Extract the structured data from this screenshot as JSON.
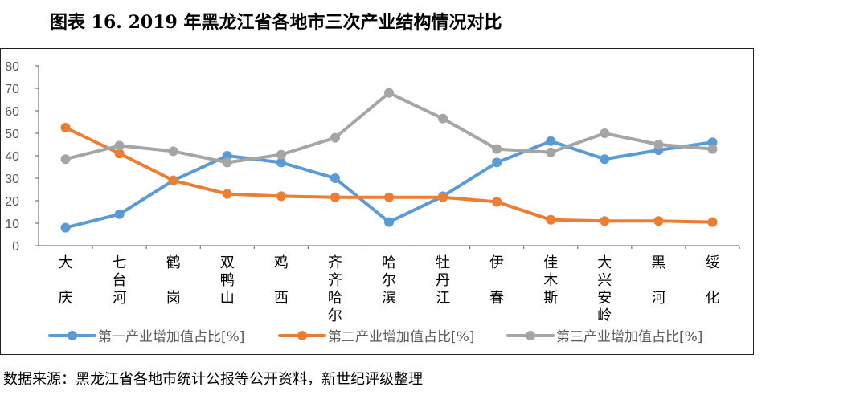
{
  "title": "图表 16. 2019 年黑龙江省各地市三次产业结构情况对比",
  "source": "数据来源：黑龙江省各地市统计公报等公开资料，新世纪评级整理",
  "colors": {
    "primary": "#5B9BD5",
    "secondary": "#ED7D31",
    "tertiary": "#A5A5A5",
    "axis": "#595959",
    "tick_text": "#595959"
  },
  "chart_data": {
    "type": "line",
    "categories": [
      "大庆",
      "七台河",
      "鹤岗",
      "双鸭山",
      "鸡西",
      "齐齐哈尔",
      "哈尔滨",
      "牡丹江",
      "伊春",
      "佳木斯",
      "大兴安岭",
      "黑河",
      "绥化"
    ],
    "category_lines": [
      [
        "大",
        "庆"
      ],
      [
        "七",
        "台",
        "河"
      ],
      [
        "鹤",
        "岗"
      ],
      [
        "双",
        "鸭",
        "山"
      ],
      [
        "鸡",
        "西"
      ],
      [
        "齐",
        "齐",
        "哈",
        "尔"
      ],
      [
        "哈",
        "尔",
        "滨"
      ],
      [
        "牡",
        "丹",
        "江"
      ],
      [
        "伊",
        "春"
      ],
      [
        "佳",
        "木",
        "斯"
      ],
      [
        "大",
        "兴",
        "安",
        "岭"
      ],
      [
        "黑",
        "河"
      ],
      [
        "绥",
        "化"
      ]
    ],
    "series": [
      {
        "name": "第一产业增加值占比[%]",
        "values": [
          8,
          14,
          29,
          40,
          37,
          30,
          10.5,
          22,
          37,
          46.5,
          38.5,
          42.5,
          46
        ]
      },
      {
        "name": "第二产业增加值占比[%]",
        "values": [
          52.5,
          41,
          29,
          23,
          22,
          21.5,
          21.5,
          21.5,
          19.5,
          11.5,
          11,
          11,
          10.5
        ]
      },
      {
        "name": "第三产业增加值占比[%]",
        "values": [
          38.5,
          44.5,
          42,
          37,
          40.5,
          48,
          68,
          56.5,
          43,
          41.5,
          50,
          45,
          43
        ]
      }
    ],
    "ylim": [
      0,
      80
    ],
    "yticks": [
      0,
      10,
      20,
      30,
      40,
      50,
      60,
      70,
      80
    ],
    "grid": false,
    "legend": "bottom",
    "xlabel": "",
    "ylabel": ""
  }
}
